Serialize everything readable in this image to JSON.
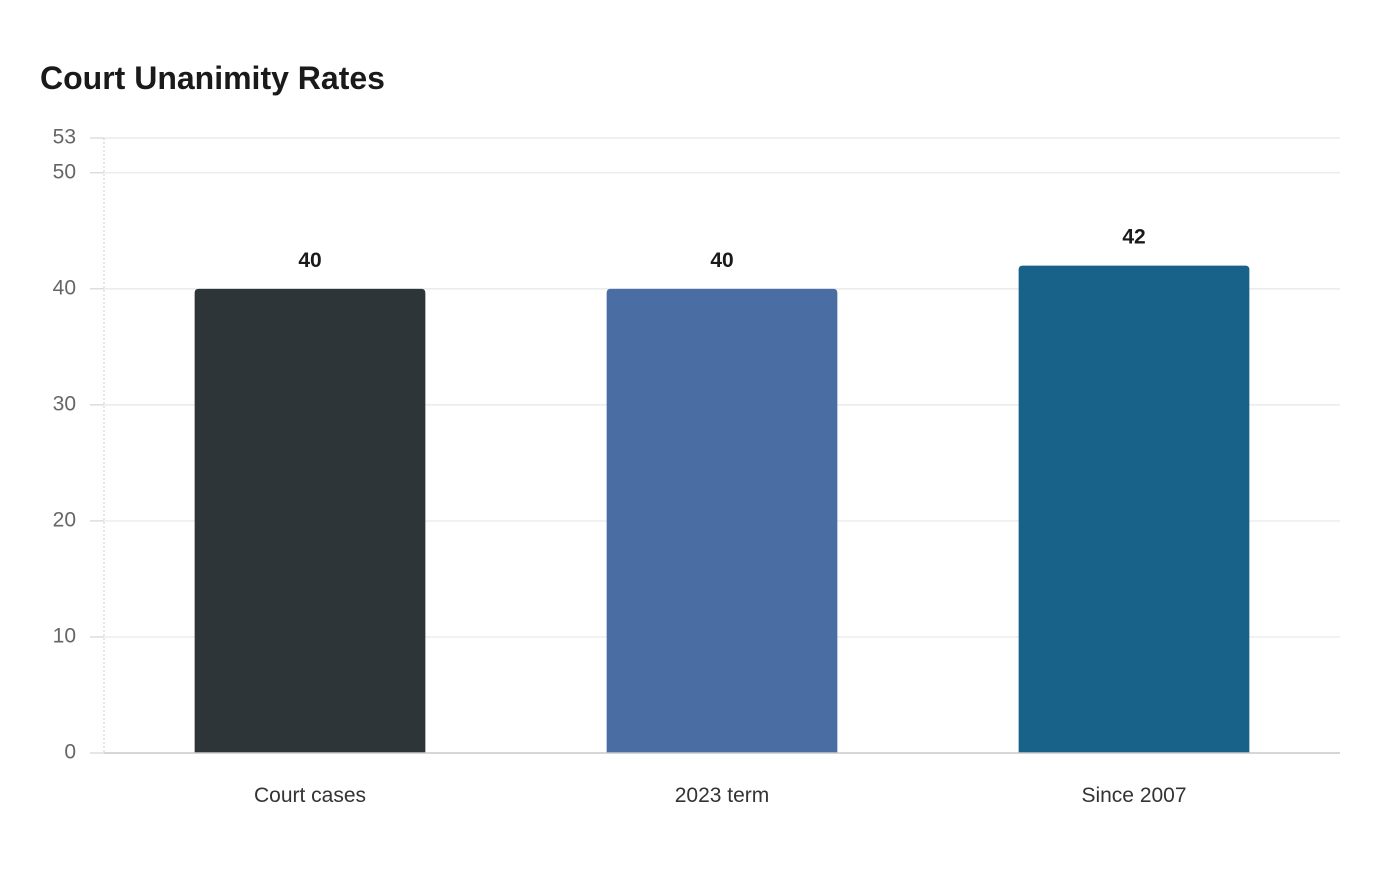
{
  "chart_data": {
    "type": "bar",
    "title": "Court Unanimity Rates",
    "categories": [
      "Court cases",
      "2023 term",
      "Since 2007"
    ],
    "values": [
      40,
      40,
      42
    ],
    "colors": [
      "#2e3538",
      "#4a6ea3",
      "#186188"
    ],
    "yticks": [
      0,
      10,
      20,
      30,
      40,
      50,
      53
    ],
    "ylim": [
      0,
      53
    ],
    "grid": true,
    "legend": "none"
  }
}
